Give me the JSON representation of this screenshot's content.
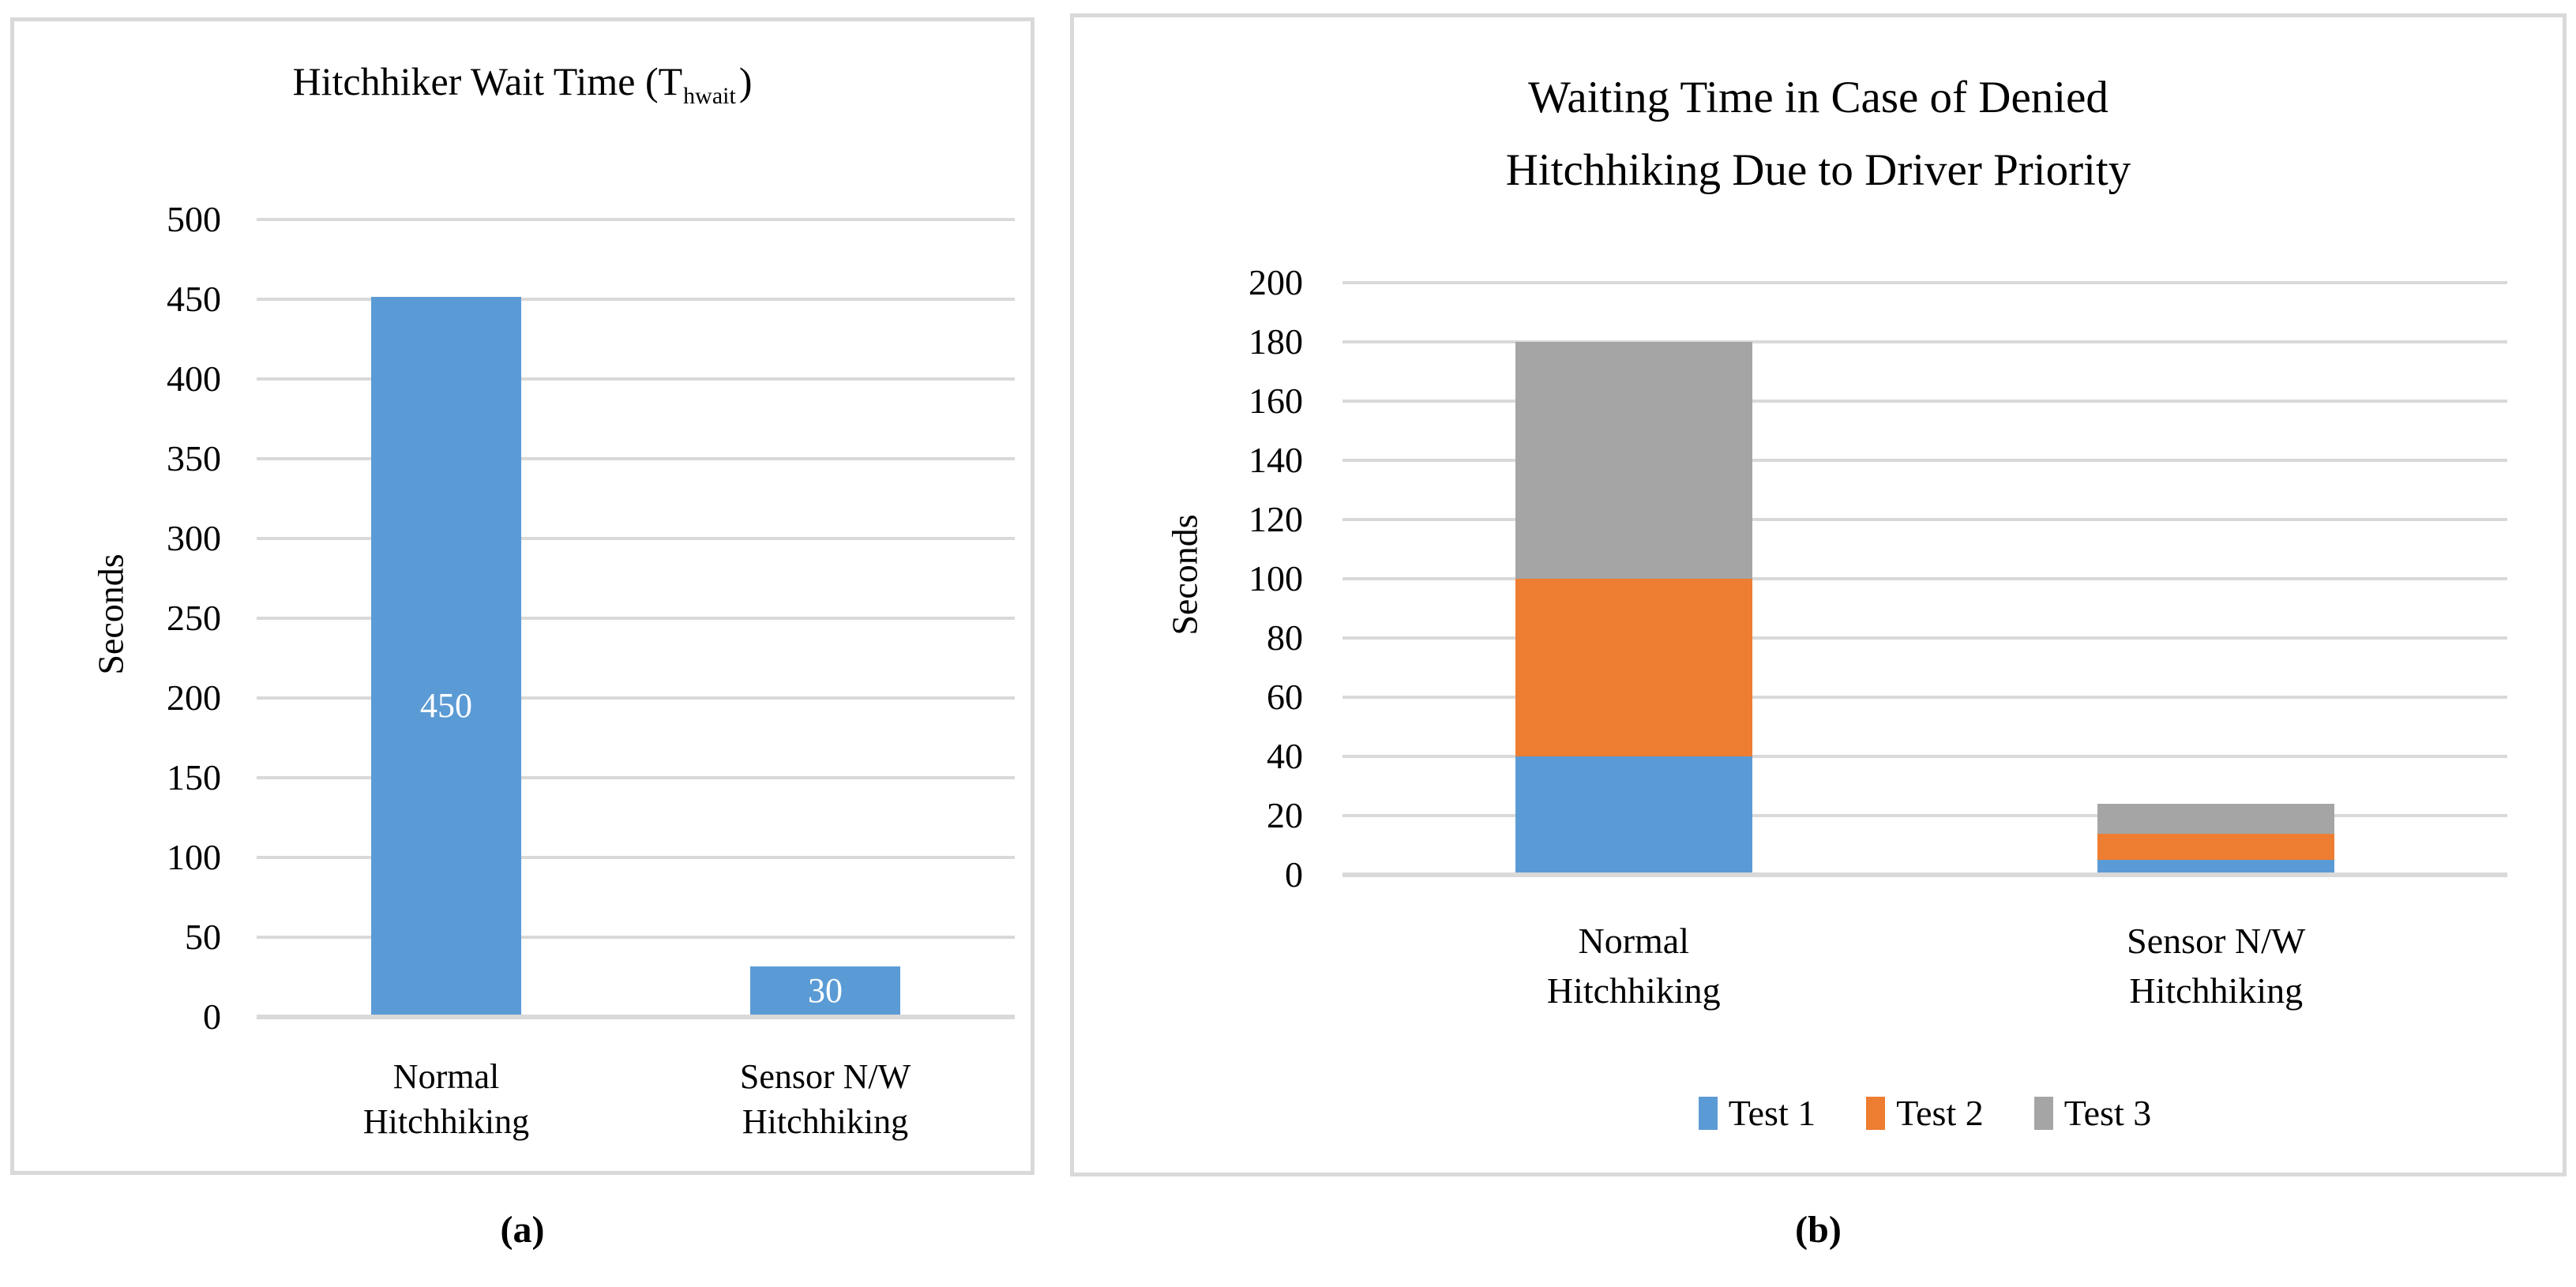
{
  "figure": {
    "captions": [
      "(a)",
      "(b)"
    ],
    "background": "#FFFFFF",
    "panel_border_color": "#D9D9D9",
    "gridline_color": "#D9D9D9",
    "text_color": "#000000"
  },
  "chart_data": [
    {
      "type": "bar",
      "title_prefix": "Hitchhiker Wait Time (T",
      "title_sub": "hwait",
      "title_suffix": ")",
      "ylabel": "Seconds",
      "ylim": [
        0,
        500
      ],
      "yticks": [
        0,
        50,
        100,
        150,
        200,
        250,
        300,
        350,
        400,
        450,
        500
      ],
      "categories": [
        [
          "Normal",
          "Hitchhiking"
        ],
        [
          "Sensor N/W",
          "Hitchhiking"
        ]
      ],
      "values": [
        450,
        30
      ],
      "data_labels": [
        "450",
        "30"
      ],
      "data_label_color": "#FFFFFF",
      "bar_color": "#5B9BD5",
      "grid": true,
      "legend": null
    },
    {
      "type": "stacked-bar",
      "title_lines": [
        "Waiting Time in Case of Denied",
        "Hitchhiking Due to Driver Priority"
      ],
      "ylabel": "Seconds",
      "ylim": [
        0,
        200
      ],
      "yticks": [
        0,
        20,
        40,
        60,
        80,
        100,
        120,
        140,
        160,
        180,
        200
      ],
      "categories": [
        [
          "Normal",
          "Hitchhiking"
        ],
        [
          "Sensor N/W",
          "Hitchhiking"
        ]
      ],
      "series": [
        {
          "name": "Test 1",
          "color": "#5B9BD5",
          "values": [
            40,
            5
          ]
        },
        {
          "name": "Test 2",
          "color": "#ED7D31",
          "values": [
            60,
            9
          ]
        },
        {
          "name": "Test 3",
          "color": "#A5A5A5",
          "values": [
            80,
            10
          ]
        }
      ],
      "legend": {
        "position": "bottom",
        "entries": [
          "Test 1",
          "Test 2",
          "Test 3"
        ]
      },
      "grid": true
    }
  ]
}
